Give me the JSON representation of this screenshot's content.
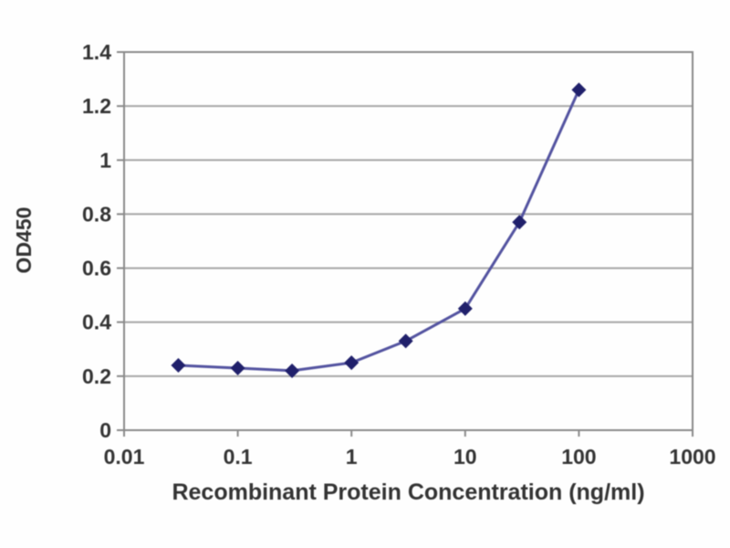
{
  "figure": {
    "background": "#ffffff",
    "kind": "elisa-binding-curve"
  },
  "chart_data": {
    "type": "line",
    "title": "",
    "xlabel": "Recombinant Protein Concentration (ng/ml)",
    "ylabel": "OD450",
    "x_scale": "log",
    "xlim": [
      0.01,
      1000
    ],
    "ylim": [
      0,
      1.4
    ],
    "x_ticks": [
      0.01,
      0.1,
      1,
      10,
      100,
      1000
    ],
    "x_tick_labels": [
      "0.01",
      "0.1",
      "1",
      "10",
      "100",
      "1000"
    ],
    "y_ticks": [
      0,
      0.2,
      0.4,
      0.6,
      0.8,
      1,
      1.2,
      1.4
    ],
    "y_tick_labels": [
      "0",
      "0.2",
      "0.4",
      "0.6",
      "0.8",
      "1",
      "1.2",
      "1.4"
    ],
    "grid": "horizontal",
    "legend": "none",
    "series": [
      {
        "name": "OD450",
        "marker": "diamond",
        "x": [
          0.03,
          0.1,
          0.3,
          1,
          3,
          10,
          30,
          100
        ],
        "y": [
          0.24,
          0.23,
          0.22,
          0.25,
          0.33,
          0.45,
          0.77,
          1.26
        ]
      }
    ],
    "colors": {
      "line": "#5353a0",
      "marker": "#20206b",
      "grid": "#a6a6a6",
      "frame": "#8a8a8a",
      "text": "#333333"
    }
  }
}
